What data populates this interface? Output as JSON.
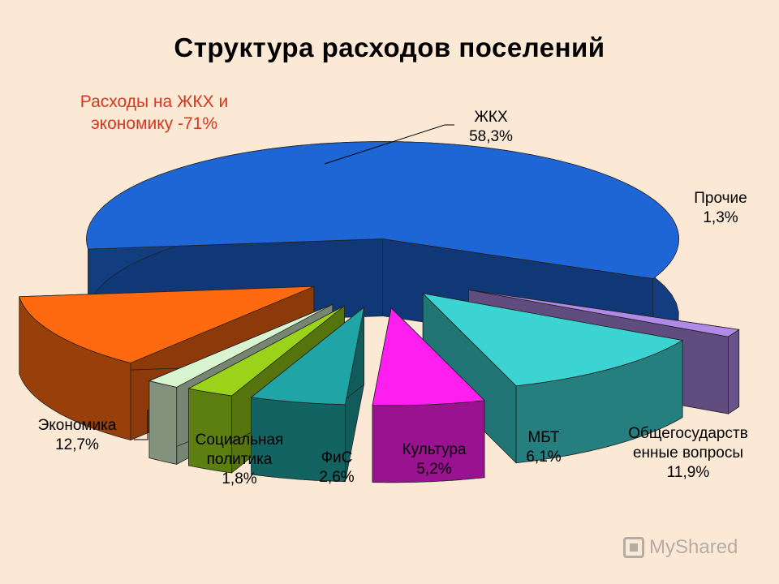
{
  "title": "Структура расходов поселений",
  "callout": [
    "Расходы на ЖКХ и",
    "экономику -71%"
  ],
  "watermark": "MyShared",
  "chart_data": {
    "type": "pie",
    "subtype": "3d-exploded",
    "title": "Структура расходов поселений",
    "slices": [
      {
        "name": "ЖКХ",
        "value": 58.3,
        "label": "58,3%",
        "color": "#1e66d6"
      },
      {
        "name": "Прочие",
        "value": 1.3,
        "label": "1,3%",
        "color": "#b08ae6"
      },
      {
        "name": "Общегосударственные вопросы",
        "label_lines": [
          "Общегосударств",
          "енные вопросы"
        ],
        "value": 11.9,
        "label": "11,9%",
        "color": "#3cd4d2"
      },
      {
        "name": "МБТ",
        "value": 6.1,
        "label": "6,1%",
        "color": "#ff1ef0"
      },
      {
        "name": "Культура",
        "value": 5.2,
        "label": "5,2%",
        "color": "#1fa5a5"
      },
      {
        "name": "ФиС",
        "value": 2.6,
        "label": "2,6%",
        "color": "#9bd21a"
      },
      {
        "name": "Социальная политика",
        "label_lines": [
          "Социальная",
          "политика"
        ],
        "value": 1.8,
        "label": "1,8%",
        "color": "#d8f4d0"
      },
      {
        "name": "Экономика",
        "value": 12.7,
        "label": "12,7%",
        "color": "#ff6a10"
      }
    ]
  }
}
